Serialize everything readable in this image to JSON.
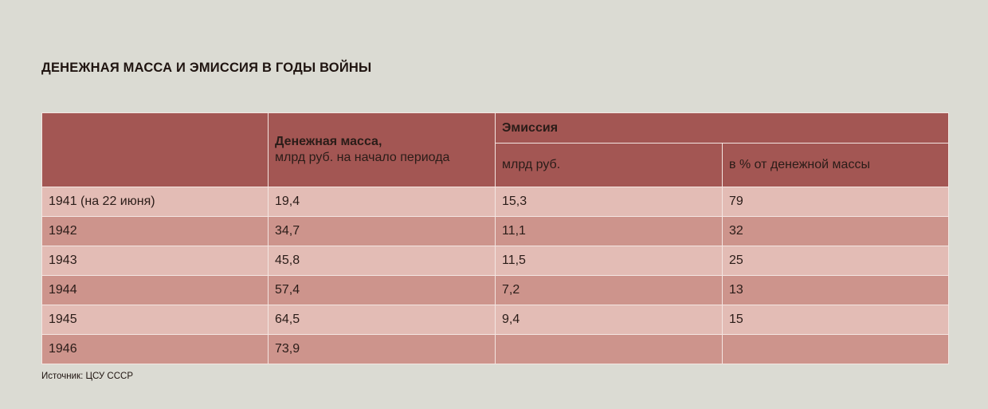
{
  "title": "ДЕНЕЖНАЯ МАССА И ЭМИССИЯ В ГОДЫ ВОЙНЫ",
  "table": {
    "headers": {
      "mass_main": "Денежная масса,",
      "mass_sub": "млрд руб. на начало периода",
      "emission_main": "Эмиссия",
      "emission_bn": "млрд руб.",
      "emission_pct": "в % от денежной массы"
    },
    "rows": [
      {
        "year": "1941 (на 22 июня)",
        "mass": "19,4",
        "emission": "15,3",
        "pct": "79"
      },
      {
        "year": "1942",
        "mass": "34,7",
        "emission": "11,1",
        "pct": "32"
      },
      {
        "year": "1943",
        "mass": "45,8",
        "emission": "11,5",
        "pct": "25"
      },
      {
        "year": "1944",
        "mass": "57,4",
        "emission": "7,2",
        "pct": "13"
      },
      {
        "year": "1945",
        "mass": "64,5",
        "emission": "9,4",
        "pct": "15"
      },
      {
        "year": "1946",
        "mass": "73,9",
        "emission": "",
        "pct": ""
      }
    ],
    "colors": {
      "header": "#a35653",
      "row_light": "#e3bcb5",
      "row_dark": "#cd948c",
      "background": "#dbdbd3"
    }
  },
  "source": "Источник: ЦСУ СССР"
}
